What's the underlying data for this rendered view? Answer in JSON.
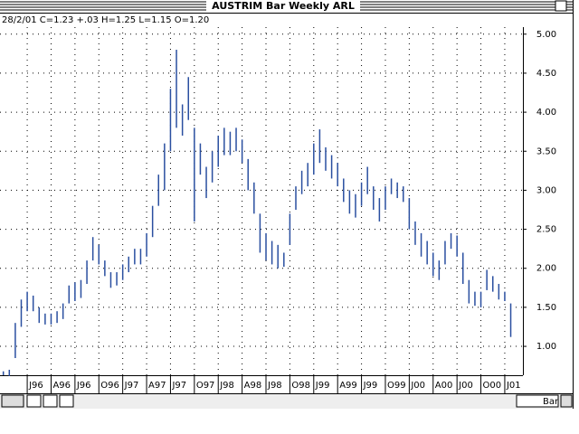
{
  "chart_data": {
    "type": "ohlc-bar",
    "title": "AUSTRIM Bar Weekly ARL",
    "subtitle": "28/2/01 C=1.23 +.03 H=1.25 L=1.15 O=1.20",
    "color": "#2a4fa0",
    "grid": true,
    "view_mode": "Bar",
    "xlim": [
      -1.14,
      20.76
    ],
    "xticks": [
      {
        "value": 0,
        "label": "J96"
      },
      {
        "value": 1,
        "label": "A96"
      },
      {
        "value": 2,
        "label": "J96"
      },
      {
        "value": 3,
        "label": "O96"
      },
      {
        "value": 4,
        "label": "J97"
      },
      {
        "value": 5,
        "label": "A97"
      },
      {
        "value": 6,
        "label": "J97"
      },
      {
        "value": 7,
        "label": "O97"
      },
      {
        "value": 8,
        "label": "J98"
      },
      {
        "value": 9,
        "label": "A98"
      },
      {
        "value": 10,
        "label": "J98"
      },
      {
        "value": 11,
        "label": "O98"
      },
      {
        "value": 12,
        "label": "J99"
      },
      {
        "value": 13,
        "label": "A99"
      },
      {
        "value": 14,
        "label": "J99"
      },
      {
        "value": 15,
        "label": "O99"
      },
      {
        "value": 16,
        "label": "J00"
      },
      {
        "value": 17,
        "label": "A00"
      },
      {
        "value": 18,
        "label": "J00"
      },
      {
        "value": 19,
        "label": "O00"
      },
      {
        "value": 20,
        "label": "J01"
      }
    ],
    "ylim": [
      0.63,
      5.09
    ],
    "yticks": [
      {
        "value": 1,
        "label": "1.00"
      },
      {
        "value": 1.5,
        "label": "1.50"
      },
      {
        "value": 2,
        "label": "2.00"
      },
      {
        "value": 2.5,
        "label": "2.50"
      },
      {
        "value": 3,
        "label": "3.00"
      },
      {
        "value": 3.5,
        "label": "3.50"
      },
      {
        "value": 4,
        "label": "4.00"
      },
      {
        "value": 4.5,
        "label": "4.50"
      },
      {
        "value": 5,
        "label": "5.00"
      }
    ],
    "x": [
      -1.0,
      -0.75,
      -0.5,
      -0.25,
      0,
      0.25,
      0.5,
      0.75,
      1.0,
      1.25,
      1.5,
      1.75,
      2.0,
      2.25,
      2.5,
      2.75,
      3.0,
      3.25,
      3.5,
      3.75,
      4.0,
      4.25,
      4.5,
      4.75,
      5.0,
      5.25,
      5.5,
      5.75,
      6.0,
      6.25,
      6.5,
      6.75,
      7.0,
      7.25,
      7.5,
      7.75,
      8.0,
      8.25,
      8.5,
      8.75,
      9.0,
      9.25,
      9.5,
      9.75,
      10.0,
      10.25,
      10.5,
      10.75,
      11.0,
      11.25,
      11.5,
      11.75,
      12.0,
      12.25,
      12.5,
      12.75,
      13.0,
      13.25,
      13.5,
      13.75,
      14.0,
      14.25,
      14.5,
      14.75,
      15.0,
      15.25,
      15.5,
      15.75,
      16.0,
      16.25,
      16.5,
      16.75,
      17.0,
      17.25,
      17.5,
      17.75,
      18.0,
      18.25,
      18.5,
      18.75,
      19.0,
      19.25,
      19.5,
      19.75,
      20.0,
      20.25
    ],
    "high": [
      0.68,
      0.7,
      1.3,
      1.6,
      1.7,
      1.65,
      1.5,
      1.42,
      1.42,
      1.45,
      1.55,
      1.78,
      1.82,
      1.85,
      2.1,
      2.4,
      2.3,
      2.1,
      1.95,
      1.95,
      2.05,
      2.15,
      2.25,
      2.25,
      2.45,
      2.8,
      3.2,
      3.6,
      4.3,
      4.8,
      4.1,
      4.45,
      3.8,
      3.6,
      3.3,
      3.5,
      3.7,
      3.8,
      3.75,
      3.8,
      3.65,
      3.4,
      3.1,
      2.7,
      2.45,
      2.35,
      2.3,
      2.2,
      2.7,
      3.05,
      3.25,
      3.35,
      3.6,
      3.78,
      3.55,
      3.45,
      3.35,
      3.15,
      3.0,
      2.95,
      3.1,
      3.3,
      3.05,
      2.9,
      3.05,
      3.15,
      3.1,
      3.05,
      2.9,
      2.6,
      2.45,
      2.35,
      2.2,
      2.1,
      2.35,
      2.45,
      2.42,
      2.2,
      1.85,
      1.7,
      1.7,
      1.98,
      1.9,
      1.8,
      1.7,
      1.55
    ],
    "low": [
      0.63,
      0.62,
      0.85,
      1.25,
      1.45,
      1.45,
      1.3,
      1.28,
      1.28,
      1.3,
      1.35,
      1.55,
      1.58,
      1.62,
      1.8,
      2.1,
      2.05,
      1.9,
      1.75,
      1.78,
      1.85,
      1.95,
      2.05,
      2.05,
      2.15,
      2.4,
      2.8,
      3.0,
      3.5,
      3.8,
      3.7,
      3.9,
      2.6,
      3.2,
      2.9,
      3.1,
      3.3,
      3.45,
      3.45,
      3.5,
      3.35,
      3.0,
      2.7,
      2.2,
      2.1,
      2.05,
      2.0,
      2.02,
      2.3,
      2.75,
      2.95,
      3.05,
      3.2,
      3.35,
      3.25,
      3.15,
      3.05,
      2.85,
      2.7,
      2.65,
      2.8,
      2.95,
      2.75,
      2.6,
      2.75,
      2.95,
      2.9,
      2.85,
      2.5,
      2.3,
      2.15,
      2.05,
      1.9,
      1.85,
      2.05,
      2.25,
      2.15,
      1.8,
      1.55,
      1.52,
      1.5,
      1.72,
      1.7,
      1.6,
      1.58,
      1.12
    ]
  }
}
